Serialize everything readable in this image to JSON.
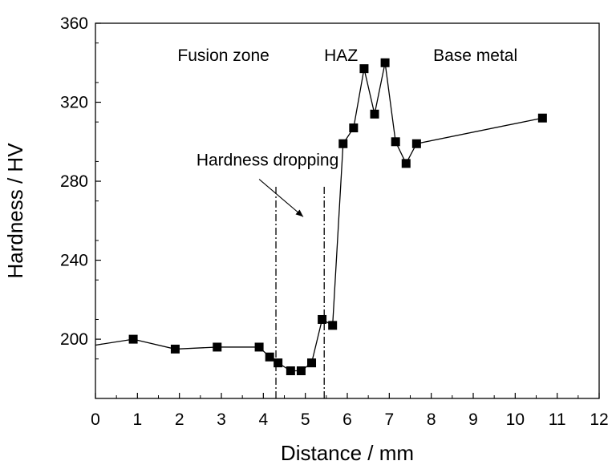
{
  "chart_data": {
    "type": "line",
    "title": "",
    "xlabel": "Distance / mm",
    "ylabel": "Hardness / HV",
    "xlim": [
      0,
      12
    ],
    "ylim": [
      170,
      360
    ],
    "x_ticks": [
      0,
      1,
      2,
      3,
      4,
      5,
      6,
      7,
      8,
      9,
      10,
      11,
      12
    ],
    "y_ticks": [
      200,
      240,
      280,
      320,
      360
    ],
    "grid": false,
    "series": [
      {
        "x": [
          0.0,
          0.9,
          1.9,
          2.9,
          3.9,
          4.15,
          4.35,
          4.65,
          4.9,
          5.15,
          5.4,
          5.65,
          5.9,
          6.15,
          6.4,
          6.65,
          6.9,
          7.15,
          7.4,
          7.65,
          10.65
        ],
        "y": [
          197,
          200,
          195,
          196,
          196,
          191,
          188,
          184,
          184,
          188,
          210,
          207,
          299,
          307,
          337,
          314,
          340,
          300,
          289,
          299,
          312
        ],
        "marker": "square",
        "color": "#000000"
      }
    ],
    "reference_lines": [
      {
        "x": 4.3,
        "y_top": 278,
        "style": "dash-dot"
      },
      {
        "x": 5.45,
        "y_top": 278,
        "style": "dash-dot"
      }
    ],
    "annotations": [
      {
        "text": "Fusion zone",
        "x": 3.05,
        "y": 341
      },
      {
        "text": "HAZ",
        "x": 5.85,
        "y": 341
      },
      {
        "text": "Base metal",
        "x": 9.05,
        "y": 341
      },
      {
        "text": "Hardness dropping",
        "x": 4.1,
        "y": 288,
        "arrow_from": [
          3.9,
          281
        ],
        "arrow_to": [
          4.95,
          262
        ]
      }
    ]
  }
}
